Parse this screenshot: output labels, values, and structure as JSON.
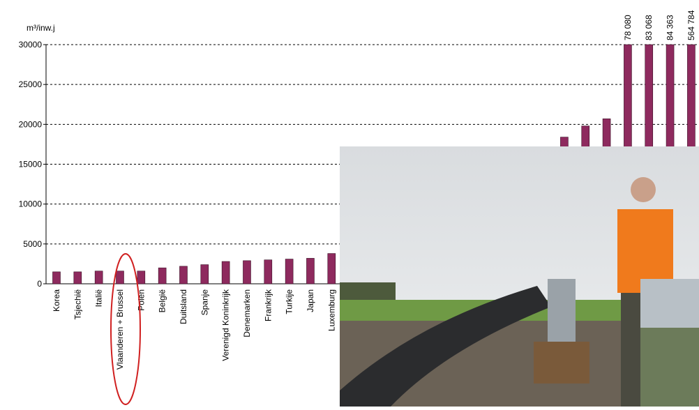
{
  "chart_data": {
    "type": "bar",
    "y_label": "m³/inw.j",
    "categories": [
      "Korea",
      "Tsjechië",
      "Italië",
      "Vlaanderen + Brussel",
      "Polen",
      "België",
      "Duitsland",
      "Spanje",
      "Verenigd Koninkrijk",
      "Denemarken",
      "Frankrijk",
      "Turkije",
      "Japan",
      "Luxemburg",
      null,
      null,
      null,
      null,
      null,
      null,
      null,
      null,
      null,
      null,
      null,
      null,
      null,
      null,
      null,
      null,
      null
    ],
    "values": [
      1500,
      1500,
      1600,
      1600,
      1600,
      2000,
      2200,
      2400,
      2800,
      2900,
      3000,
      3100,
      3200,
      3800,
      null,
      null,
      null,
      null,
      null,
      null,
      null,
      null,
      null,
      null,
      18400,
      19800,
      20700,
      78080,
      83068,
      84363,
      564784
    ],
    "value_labels": [
      null,
      null,
      null,
      null,
      null,
      null,
      null,
      null,
      null,
      null,
      null,
      null,
      null,
      null,
      null,
      null,
      null,
      null,
      null,
      null,
      null,
      null,
      null,
      null,
      null,
      null,
      null,
      "78 080",
      "83 068",
      "84 363",
      "564 784"
    ],
    "color": "#8e2a5e",
    "ylim": [
      0,
      30000
    ],
    "yticks": [
      0,
      5000,
      10000,
      15000,
      20000,
      25000,
      30000
    ],
    "grid": true
  }
}
